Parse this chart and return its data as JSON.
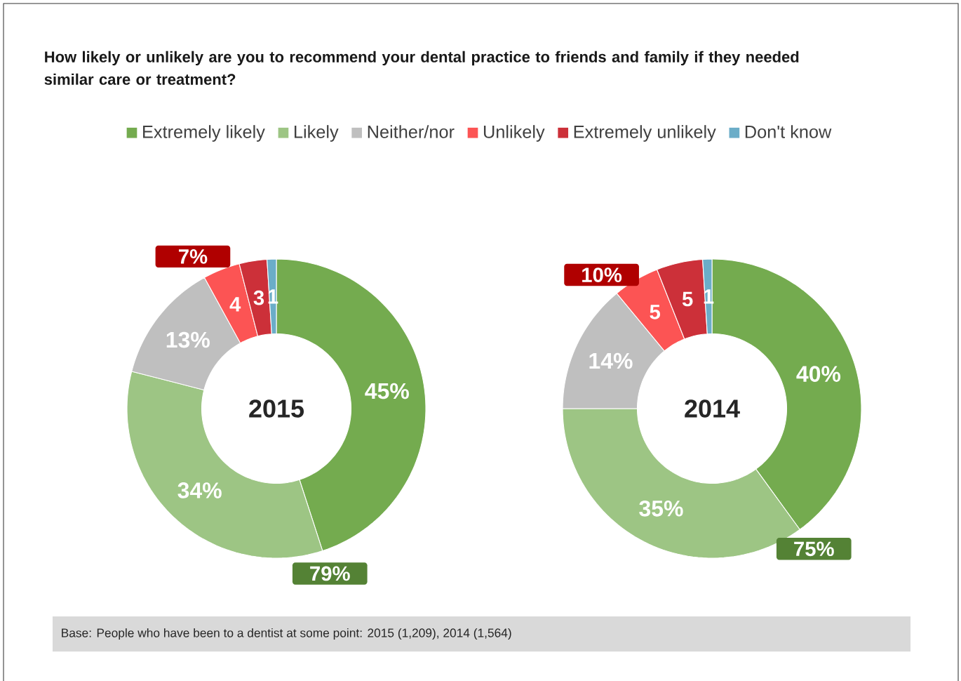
{
  "chart_data": [
    {
      "type": "donut",
      "title": "How likely or unlikely are you to recommend your dental practice to friends and family if they needed similar care or treatment?",
      "categories": [
        "Extremely likely",
        "Likely",
        "Neither/nor",
        "Unlikely",
        "Extremely unlikely",
        "Don't know"
      ],
      "values": [
        45,
        34,
        13,
        4,
        3,
        1
      ],
      "value_labels": [
        "45%",
        "34%",
        "13%",
        "4",
        "3",
        "1"
      ],
      "colors": [
        "#74ab4f",
        "#9dc584",
        "#bfbfbf",
        "#fc5454",
        "#cc3039",
        "#6badc8"
      ],
      "legend": "top",
      "annotations": [
        "2015",
        "79%",
        "7%",
        "Base: People who have been to a dentist at some point: 2015 (1,209), 2014 (1,564)"
      ]
    },
    {
      "type": "donut",
      "categories": [
        null,
        null,
        null,
        null,
        null,
        null
      ],
      "values": [
        40,
        35,
        14,
        5,
        5,
        1
      ],
      "value_labels": [
        "40%",
        "35%",
        "14%",
        "5",
        "5",
        "1"
      ],
      "colors": [
        "#74ab4f",
        "#9dc584",
        "#bfbfbf",
        "#fc5454",
        "#cc3039",
        "#6badc8"
      ],
      "annotations": [
        "2014",
        "75%",
        "10%"
      ]
    }
  ]
}
